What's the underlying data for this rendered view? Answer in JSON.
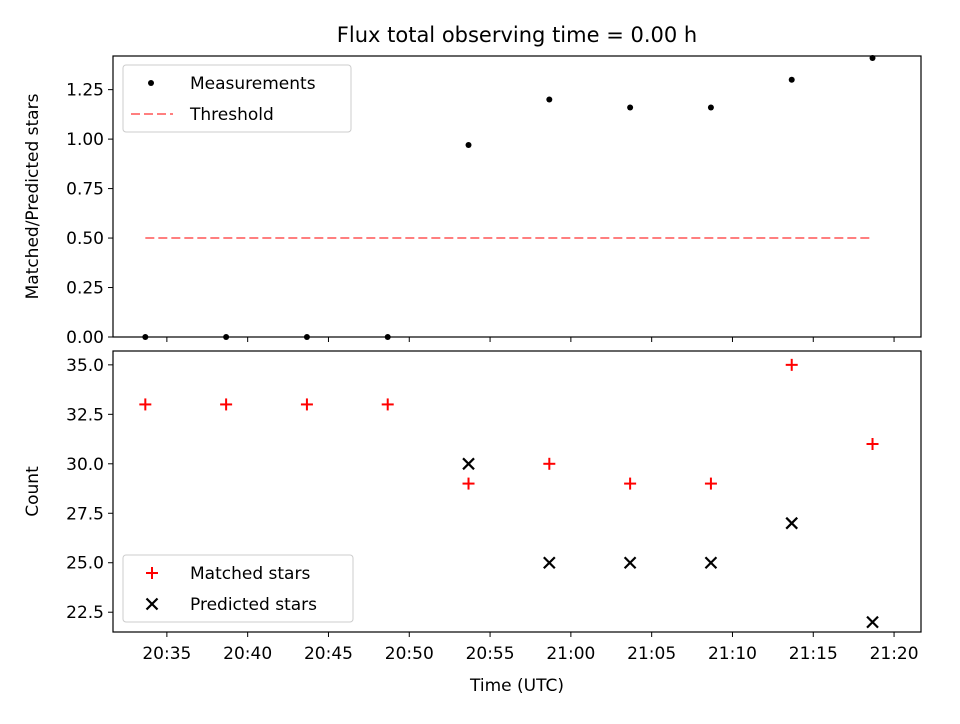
{
  "chart_data": [
    {
      "type": "scatter",
      "title": "Flux total observing time = 0.00 h",
      "xlabel": "",
      "ylabel": "Matched/Predicted stars",
      "ylim": [
        0,
        1.42
      ],
      "yticks": [
        "0.00",
        "0.25",
        "0.50",
        "0.75",
        "1.00",
        "1.25"
      ],
      "grid": false,
      "legend": "upper-left",
      "series": [
        {
          "name": "Measurements",
          "marker": "dot",
          "color": "#000000",
          "x": [
            "20:33:40",
            "20:38:40",
            "20:43:40",
            "20:48:40",
            "20:53:40",
            "20:58:40",
            "21:03:40",
            "21:08:40",
            "21:13:40",
            "21:18:40"
          ],
          "y": [
            0.0,
            0.0,
            0.0,
            0.0,
            0.97,
            1.2,
            1.16,
            1.16,
            1.3,
            1.41
          ]
        },
        {
          "name": "Threshold",
          "marker": "dashed-line",
          "color": "#ff7f7f",
          "x": [
            "20:33:40",
            "21:18:40"
          ],
          "y": [
            0.5,
            0.5
          ]
        }
      ]
    },
    {
      "type": "scatter",
      "title": "",
      "xlabel": "Time (UTC)",
      "ylabel": "Count",
      "ylim": [
        21.5,
        35.7
      ],
      "yticks": [
        "22.5",
        "25.0",
        "27.5",
        "30.0",
        "32.5",
        "35.0"
      ],
      "xlim": [
        "20:31:40",
        "21:21:40"
      ],
      "xticks": [
        "20:35",
        "20:40",
        "20:45",
        "20:50",
        "20:55",
        "21:00",
        "21:05",
        "21:10",
        "21:15",
        "21:20"
      ],
      "grid": false,
      "legend": "lower-left",
      "series": [
        {
          "name": "Matched stars",
          "marker": "plus",
          "color": "#ff0000",
          "x": [
            "20:33:40",
            "20:38:40",
            "20:43:40",
            "20:48:40",
            "20:53:40",
            "20:58:40",
            "21:03:40",
            "21:08:40",
            "21:13:40",
            "21:18:40"
          ],
          "y": [
            33,
            33,
            33,
            33,
            29,
            30,
            29,
            29,
            35,
            31
          ]
        },
        {
          "name": "Predicted stars",
          "marker": "x",
          "color": "#000000",
          "x": [
            "20:53:40",
            "20:58:40",
            "21:03:40",
            "21:08:40",
            "21:13:40",
            "21:18:40"
          ],
          "y": [
            30,
            25,
            25,
            25,
            27,
            22
          ]
        }
      ]
    }
  ]
}
